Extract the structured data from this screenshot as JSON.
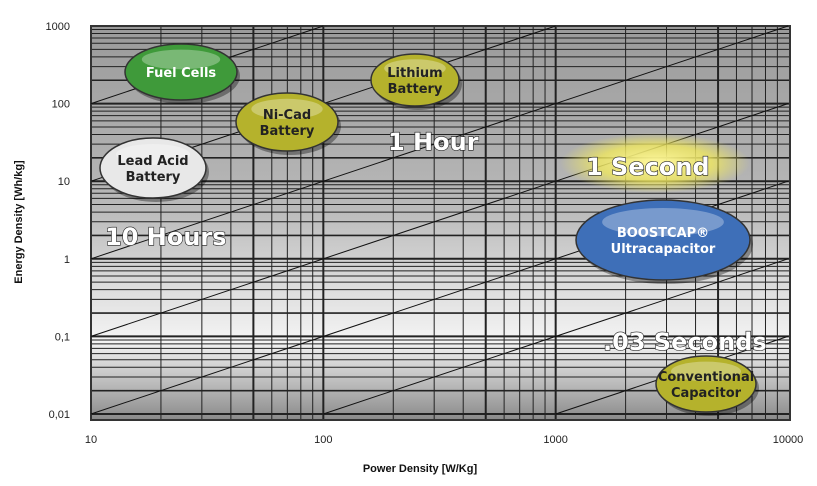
{
  "chart_data": {
    "type": "line",
    "title": "",
    "xlabel": "Power Density [W/Kg]",
    "ylabel": "Energy Density [Wh/kg]",
    "x_scale": "log",
    "y_scale": "log",
    "xlim": [
      10,
      10000
    ],
    "ylim": [
      0.01,
      1000
    ],
    "x_ticks": [
      "10",
      "100",
      "1000",
      "10000"
    ],
    "y_ticks": [
      "1000",
      "100",
      "10",
      "1",
      "0,1",
      "0,01"
    ],
    "grid": true,
    "time_line_labels": [
      "10 Hours",
      "1 Hour",
      "1 Second",
      ".03 Seconds"
    ],
    "regions": [
      {
        "label": [
          "Fuel Cells"
        ],
        "color": "#3f9a3a"
      },
      {
        "label": [
          "Lithium",
          "Battery"
        ],
        "color": "#b5b22c"
      },
      {
        "label": [
          "Ni-Cad",
          "Battery"
        ],
        "color": "#b5b22c"
      },
      {
        "label": [
          "Lead Acid",
          "Battery"
        ],
        "color": "#e8e8e8"
      },
      {
        "label": [
          "BOOSTCAP®",
          "Ultracapacitor"
        ],
        "color": "#3e6fb8"
      },
      {
        "label": [
          "Conventional",
          "Capacitor"
        ],
        "color": "#b5b22c"
      }
    ]
  }
}
